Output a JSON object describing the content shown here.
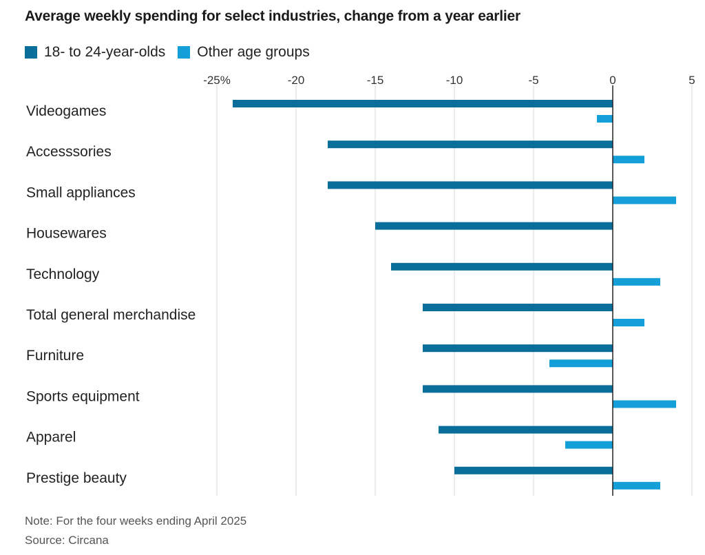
{
  "title": "Average weekly spending for select industries, change from a year earlier",
  "colors": {
    "series_a": "#0a6e9b",
    "series_b": "#159fd9",
    "grid": "#d9d9d9",
    "zero_line": "#222222"
  },
  "chart_data": {
    "type": "bar",
    "orientation": "horizontal",
    "categories": [
      "Videogames",
      "Accesssories",
      "Small appliances",
      "Housewares",
      "Technology",
      "Total general merchandise",
      "Furniture",
      "Sports equipment",
      "Apparel",
      "Prestige beauty"
    ],
    "series": [
      {
        "name": "18- to 24-year-olds",
        "values": [
          -24,
          -18,
          -18,
          -15,
          -14,
          -12,
          -12,
          -12,
          -11,
          -10
        ]
      },
      {
        "name": "Other age groups",
        "values": [
          -1,
          2,
          4,
          null,
          3,
          2,
          -4,
          4,
          -3,
          3
        ]
      }
    ],
    "ticks": [
      -25,
      -20,
      -15,
      -10,
      -5,
      0,
      5
    ],
    "tick_labels": [
      "-25%",
      "-20",
      "-15",
      "-10",
      "-5",
      "0",
      "5"
    ],
    "xlim": [
      -25,
      5
    ],
    "grid": true,
    "legend_position": "top-left"
  },
  "note": "Note: For the four weeks ending April 2025",
  "source": "Source: Circana"
}
